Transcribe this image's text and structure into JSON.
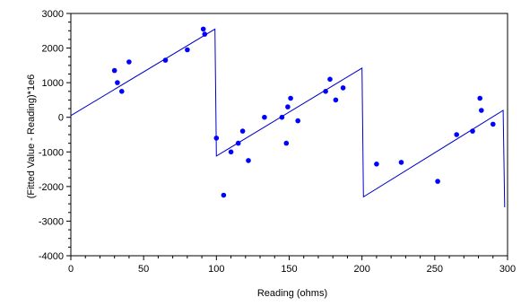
{
  "chart_data": {
    "type": "scatter",
    "title": "",
    "xlabel": "Reading (ohms)",
    "ylabel": "(Fitted Value - Reading)*1e6",
    "xlim": [
      0,
      300
    ],
    "ylim": [
      -4000,
      3000
    ],
    "xticks": [
      0,
      50,
      100,
      150,
      200,
      250,
      300
    ],
    "yticks": [
      -4000,
      -3000,
      -2000,
      -1000,
      0,
      1000,
      2000,
      3000
    ],
    "grid": false,
    "colors": {
      "points": "#0000ff",
      "line": "#0000cc",
      "axis": "#000000",
      "background": "#ffffff"
    },
    "series": [
      {
        "kind": "points",
        "x": [
          30,
          32,
          35,
          40,
          65,
          80,
          91,
          92,
          100,
          105,
          110,
          115,
          118,
          122,
          133,
          145,
          148,
          149,
          151,
          156,
          175,
          178,
          182,
          187,
          210,
          227,
          252,
          265,
          276,
          281,
          282,
          290
        ],
        "y": [
          1350,
          1000,
          750,
          1600,
          1650,
          1950,
          2550,
          2400,
          -600,
          -2250,
          -1000,
          -750,
          -400,
          -1250,
          0,
          0,
          -750,
          300,
          550,
          -100,
          750,
          1100,
          500,
          850,
          -1350,
          -1300,
          -1850,
          -500,
          -400,
          550,
          200,
          -200
        ]
      },
      {
        "kind": "line",
        "x": [
          0,
          99,
          100,
          200,
          201,
          297,
          298
        ],
        "y": [
          50,
          2550,
          -1120,
          1420,
          -2300,
          200,
          -2600
        ]
      }
    ]
  }
}
